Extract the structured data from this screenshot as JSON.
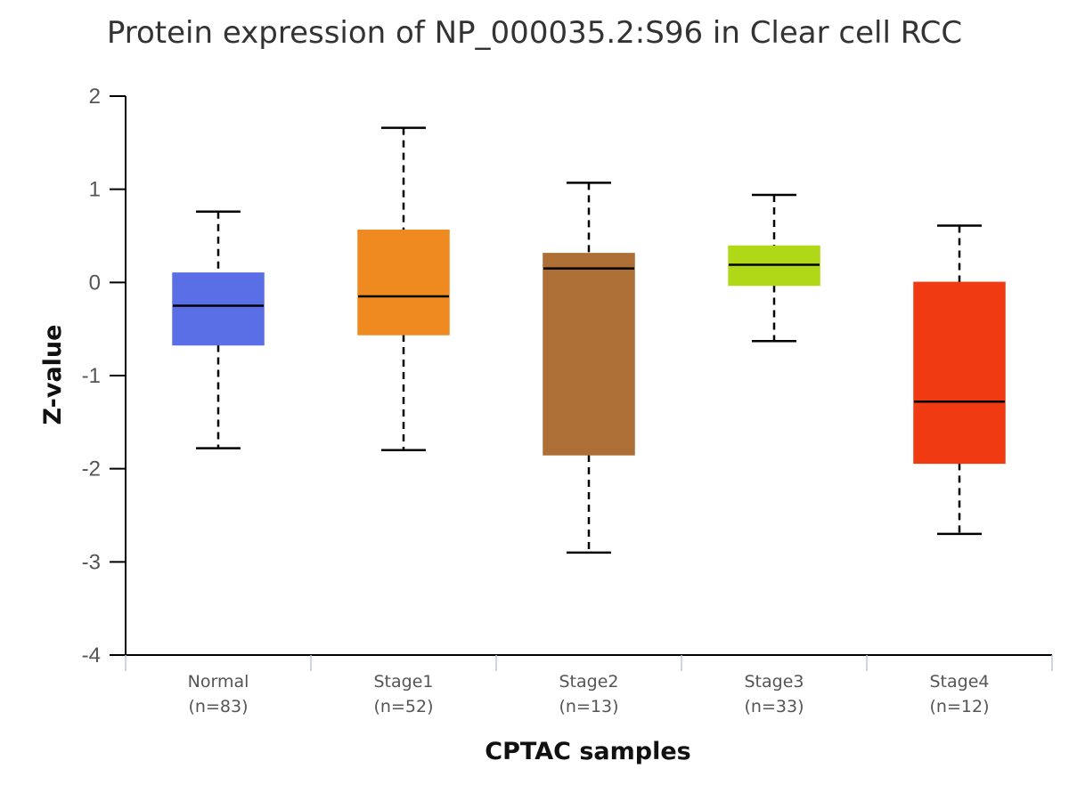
{
  "chart_data": {
    "type": "box",
    "title": "Protein expression of NP_000035.2:S96 in Clear cell RCC",
    "xlabel": "CPTAC samples",
    "ylabel": "Z-value",
    "ylim": [
      -4,
      2
    ],
    "yticks": [
      "2",
      "1",
      "0",
      "-1",
      "-2",
      "-3",
      "-4"
    ],
    "grid": false,
    "categories": [
      {
        "name": "Normal",
        "n": "(n=83)",
        "color": "#5a6ee6",
        "whisker_low": -1.78,
        "q1": -0.67,
        "median": -0.25,
        "q3": 0.1,
        "whisker_high": 0.76
      },
      {
        "name": "Stage1",
        "n": "(n=52)",
        "color": "#ef8a20",
        "whisker_low": -1.8,
        "q1": -0.56,
        "median": -0.15,
        "q3": 0.56,
        "whisker_high": 1.66
      },
      {
        "name": "Stage2",
        "n": "(n=13)",
        "color": "#ad6f35",
        "whisker_low": -2.9,
        "q1": -1.85,
        "median": 0.15,
        "q3": 0.31,
        "whisker_high": 1.07
      },
      {
        "name": "Stage3",
        "n": "(n=33)",
        "color": "#b0d817",
        "whisker_low": -0.63,
        "q1": -0.03,
        "median": 0.19,
        "q3": 0.39,
        "whisker_high": 0.94
      },
      {
        "name": "Stage4",
        "n": "(n=12)",
        "color": "#f03a12",
        "whisker_low": -2.7,
        "q1": -1.94,
        "median": -1.28,
        "q3": 0.0,
        "whisker_high": 0.61
      }
    ]
  }
}
